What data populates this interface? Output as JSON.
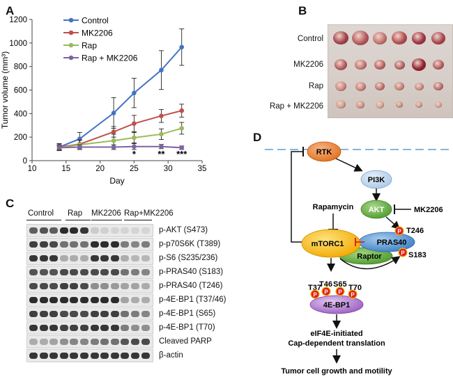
{
  "panels": {
    "a": "A",
    "b": "B",
    "c": "C",
    "d": "D"
  },
  "chart_data": {
    "type": "line",
    "xlabel": "Day",
    "ylabel": "Tumor volume (mm³)",
    "xlim": [
      10,
      35
    ],
    "ylim": [
      0,
      1200
    ],
    "x_ticks": [
      10,
      15,
      20,
      25,
      30,
      35
    ],
    "y_ticks": [
      0,
      200,
      400,
      600,
      800,
      1000,
      1200
    ],
    "x": [
      14,
      17,
      22,
      25,
      29,
      32
    ],
    "series": [
      {
        "name": "Control",
        "color": "#4472c4",
        "values": [
          115,
          185,
          405,
          575,
          770,
          965
        ],
        "errors": [
          30,
          55,
          130,
          125,
          165,
          155
        ]
      },
      {
        "name": "MK2206",
        "color": "#c0504d",
        "values": [
          115,
          140,
          245,
          315,
          380,
          425
        ],
        "errors": [
          25,
          35,
          45,
          70,
          55,
          55
        ]
      },
      {
        "name": "Rap",
        "color": "#9bbb59",
        "values": [
          110,
          135,
          170,
          195,
          225,
          275
        ],
        "errors": [
          20,
          40,
          55,
          45,
          45,
          50
        ]
      },
      {
        "name": "Rap + MK2206",
        "color": "#8064a2",
        "values": [
          110,
          115,
          115,
          120,
          120,
          110
        ],
        "errors": [
          15,
          20,
          20,
          25,
          18,
          15
        ]
      }
    ],
    "annotations": [
      {
        "x": 25,
        "text": "*"
      },
      {
        "x": 29,
        "text": "**"
      },
      {
        "x": 32,
        "text": "***"
      }
    ],
    "legend_position": "top-left"
  },
  "panel_b": {
    "rows": [
      "Control",
      "MK2206",
      "Rap",
      "Rap + MK2206"
    ]
  },
  "panel_c": {
    "groups": [
      "Control",
      "Rap",
      "MK2206",
      "Rap+MK2206"
    ],
    "rows": [
      {
        "label": "p-AKT (S473)",
        "intensity": [
          0.7,
          0.75,
          0.7,
          0.95,
          0.95,
          0.9,
          0.15,
          0.12,
          0.1,
          0.1,
          0.1,
          0.1
        ]
      },
      {
        "label": "p-p70S6K (T389)",
        "intensity": [
          0.85,
          0.85,
          0.8,
          0.6,
          0.6,
          0.6,
          0.95,
          0.95,
          0.95,
          0.55,
          0.5,
          0.55
        ]
      },
      {
        "label": "p-S6 (S235/236)",
        "intensity": [
          0.9,
          0.9,
          0.9,
          0.3,
          0.3,
          0.3,
          0.9,
          0.9,
          0.9,
          0.3,
          0.25,
          0.25
        ]
      },
      {
        "label": "p-PRAS40 (S183)",
        "intensity": [
          0.75,
          0.75,
          0.75,
          0.8,
          0.8,
          0.8,
          0.8,
          0.8,
          0.8,
          0.6,
          0.55,
          0.5
        ]
      },
      {
        "label": "p-PRAS40 (T246)",
        "intensity": [
          0.8,
          0.8,
          0.8,
          0.85,
          0.85,
          0.8,
          0.45,
          0.45,
          0.4,
          0.35,
          0.35,
          0.3
        ]
      },
      {
        "label": "p-4E-BP1 (T37/46)",
        "intensity": [
          0.95,
          0.95,
          0.95,
          0.95,
          0.95,
          0.95,
          0.95,
          0.95,
          0.95,
          0.35,
          0.3,
          0.3
        ]
      },
      {
        "label": "p-4E-BP1 (S65)",
        "intensity": [
          0.85,
          0.85,
          0.85,
          0.8,
          0.8,
          0.8,
          0.85,
          0.85,
          0.85,
          0.6,
          0.55,
          0.5
        ]
      },
      {
        "label": "p-4E-BP1 (T70)",
        "intensity": [
          0.9,
          0.9,
          0.9,
          0.85,
          0.85,
          0.85,
          0.9,
          0.9,
          0.9,
          0.55,
          0.45,
          0.45
        ]
      },
      {
        "label": "Cleaved PARP",
        "intensity": [
          0.3,
          0.3,
          0.35,
          0.45,
          0.5,
          0.5,
          0.55,
          0.6,
          0.6,
          0.75,
          0.8,
          0.8
        ]
      },
      {
        "label": "β-actin",
        "intensity": [
          0.9,
          0.9,
          0.9,
          0.9,
          0.9,
          0.9,
          0.9,
          0.9,
          0.9,
          0.9,
          0.9,
          0.9
        ]
      }
    ]
  },
  "panel_d": {
    "rtk": "RTK",
    "pi3k": "PI3K",
    "akt": "AKT",
    "mk2206": "MK2206",
    "rapamycin": "Rapamycin",
    "mtorc1": "mTORC1",
    "pras40": "PRAS40",
    "raptor": "Raptor",
    "t246": "T246",
    "s183": "S183",
    "p": "P",
    "sites": [
      "T37",
      "T46",
      "S65",
      "T70"
    ],
    "ebp1": "4E-BP1",
    "translation_line1": "eIF4E-initiated",
    "translation_line2": "Cap-dependent translation",
    "outcome": "Tumor cell growth and motility"
  },
  "colors": {
    "rtk": "#ed7d31",
    "pi3k": "#bdd7ee",
    "akt": "#70ad47",
    "mtorc1": "#ffc000",
    "pras40": "#5b9bd5",
    "raptor": "#70ad47",
    "phospho": "#e02020",
    "ebp1": "#b07fd0",
    "membrane": "#5b9bd5"
  }
}
